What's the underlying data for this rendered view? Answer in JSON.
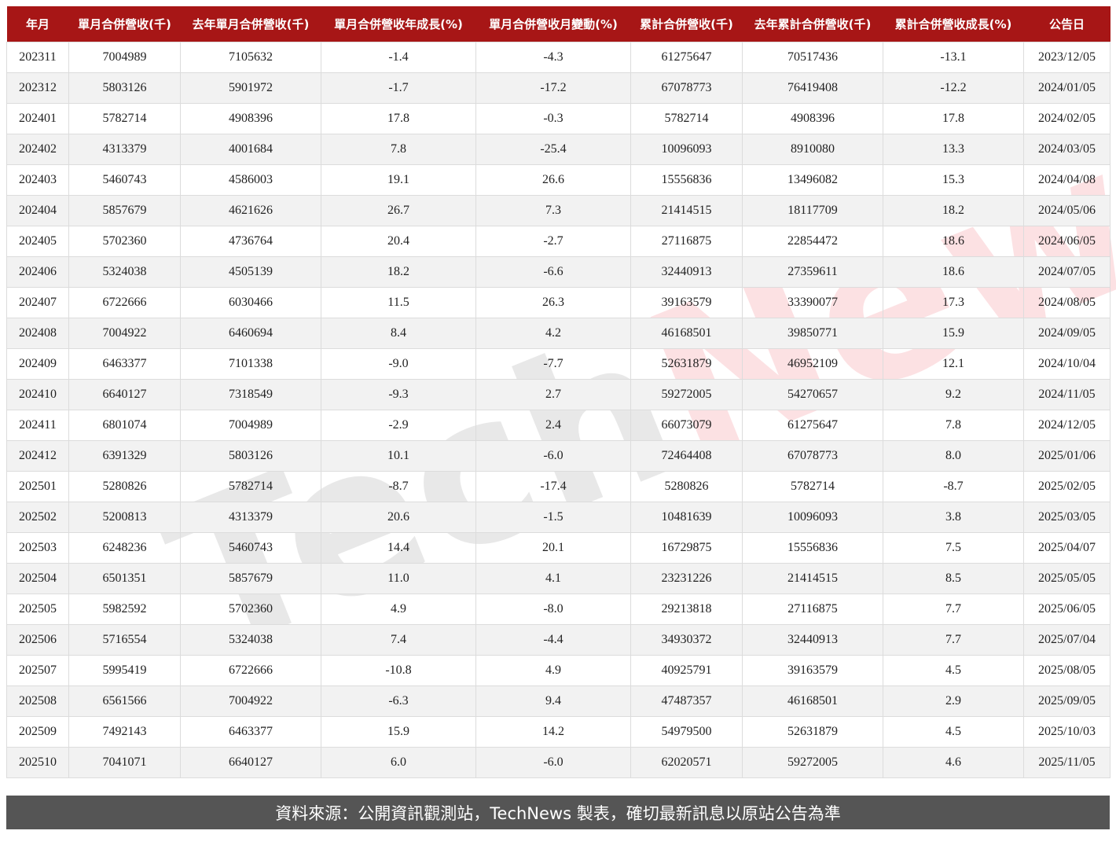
{
  "headers": [
    "年月",
    "單月合併營收(千)",
    "去年單月合併營收(千)",
    "單月合併營收年成長(%)",
    "單月合併營收月變動(%)",
    "累計合併營收(千)",
    "去年累計合併營收(千)",
    "累計合併營收成長(%)",
    "公告日"
  ],
  "rows": [
    [
      "202311",
      "7004989",
      "7105632",
      "-1.4",
      "-4.3",
      "61275647",
      "70517436",
      "-13.1",
      "2023/12/05"
    ],
    [
      "202312",
      "5803126",
      "5901972",
      "-1.7",
      "-17.2",
      "67078773",
      "76419408",
      "-12.2",
      "2024/01/05"
    ],
    [
      "202401",
      "5782714",
      "4908396",
      "17.8",
      "-0.3",
      "5782714",
      "4908396",
      "17.8",
      "2024/02/05"
    ],
    [
      "202402",
      "4313379",
      "4001684",
      "7.8",
      "-25.4",
      "10096093",
      "8910080",
      "13.3",
      "2024/03/05"
    ],
    [
      "202403",
      "5460743",
      "4586003",
      "19.1",
      "26.6",
      "15556836",
      "13496082",
      "15.3",
      "2024/04/08"
    ],
    [
      "202404",
      "5857679",
      "4621626",
      "26.7",
      "7.3",
      "21414515",
      "18117709",
      "18.2",
      "2024/05/06"
    ],
    [
      "202405",
      "5702360",
      "4736764",
      "20.4",
      "-2.7",
      "27116875",
      "22854472",
      "18.6",
      "2024/06/05"
    ],
    [
      "202406",
      "5324038",
      "4505139",
      "18.2",
      "-6.6",
      "32440913",
      "27359611",
      "18.6",
      "2024/07/05"
    ],
    [
      "202407",
      "6722666",
      "6030466",
      "11.5",
      "26.3",
      "39163579",
      "33390077",
      "17.3",
      "2024/08/05"
    ],
    [
      "202408",
      "7004922",
      "6460694",
      "8.4",
      "4.2",
      "46168501",
      "39850771",
      "15.9",
      "2024/09/05"
    ],
    [
      "202409",
      "6463377",
      "7101338",
      "-9.0",
      "-7.7",
      "52631879",
      "46952109",
      "12.1",
      "2024/10/04"
    ],
    [
      "202410",
      "6640127",
      "7318549",
      "-9.3",
      "2.7",
      "59272005",
      "54270657",
      "9.2",
      "2024/11/05"
    ],
    [
      "202411",
      "6801074",
      "7004989",
      "-2.9",
      "2.4",
      "66073079",
      "61275647",
      "7.8",
      "2024/12/05"
    ],
    [
      "202412",
      "6391329",
      "5803126",
      "10.1",
      "-6.0",
      "72464408",
      "67078773",
      "8.0",
      "2025/01/06"
    ],
    [
      "202501",
      "5280826",
      "5782714",
      "-8.7",
      "-17.4",
      "5280826",
      "5782714",
      "-8.7",
      "2025/02/05"
    ],
    [
      "202502",
      "5200813",
      "4313379",
      "20.6",
      "-1.5",
      "10481639",
      "10096093",
      "3.8",
      "2025/03/05"
    ],
    [
      "202503",
      "6248236",
      "5460743",
      "14.4",
      "20.1",
      "16729875",
      "15556836",
      "7.5",
      "2025/04/07"
    ],
    [
      "202504",
      "6501351",
      "5857679",
      "11.0",
      "4.1",
      "23231226",
      "21414515",
      "8.5",
      "2025/05/05"
    ],
    [
      "202505",
      "5982592",
      "5702360",
      "4.9",
      "-8.0",
      "29213818",
      "27116875",
      "7.7",
      "2025/06/05"
    ],
    [
      "202506",
      "5716554",
      "5324038",
      "7.4",
      "-4.4",
      "34930372",
      "32440913",
      "7.7",
      "2025/07/04"
    ],
    [
      "202507",
      "5995419",
      "6722666",
      "-10.8",
      "4.9",
      "40925791",
      "39163579",
      "4.5",
      "2025/08/05"
    ],
    [
      "202508",
      "6561566",
      "7004922",
      "-6.3",
      "9.4",
      "47487357",
      "46168501",
      "2.9",
      "2025/09/05"
    ],
    [
      "202509",
      "7492143",
      "6463377",
      "15.9",
      "14.2",
      "54979500",
      "52631879",
      "4.5",
      "2025/10/03"
    ],
    [
      "202510",
      "7041071",
      "6640127",
      "6.0",
      "-6.0",
      "62020571",
      "59272005",
      "4.6",
      "2025/11/05"
    ]
  ],
  "watermark": {
    "part1": "Tech",
    "part2": "News"
  },
  "footer": "資料來源：公開資訊觀測站，TechNews 製表，確切最新訊息以原站公告為準",
  "colors": {
    "header_bg": "#a71616",
    "footer_bg": "#555555",
    "alt_row": "#f2f2f2"
  }
}
